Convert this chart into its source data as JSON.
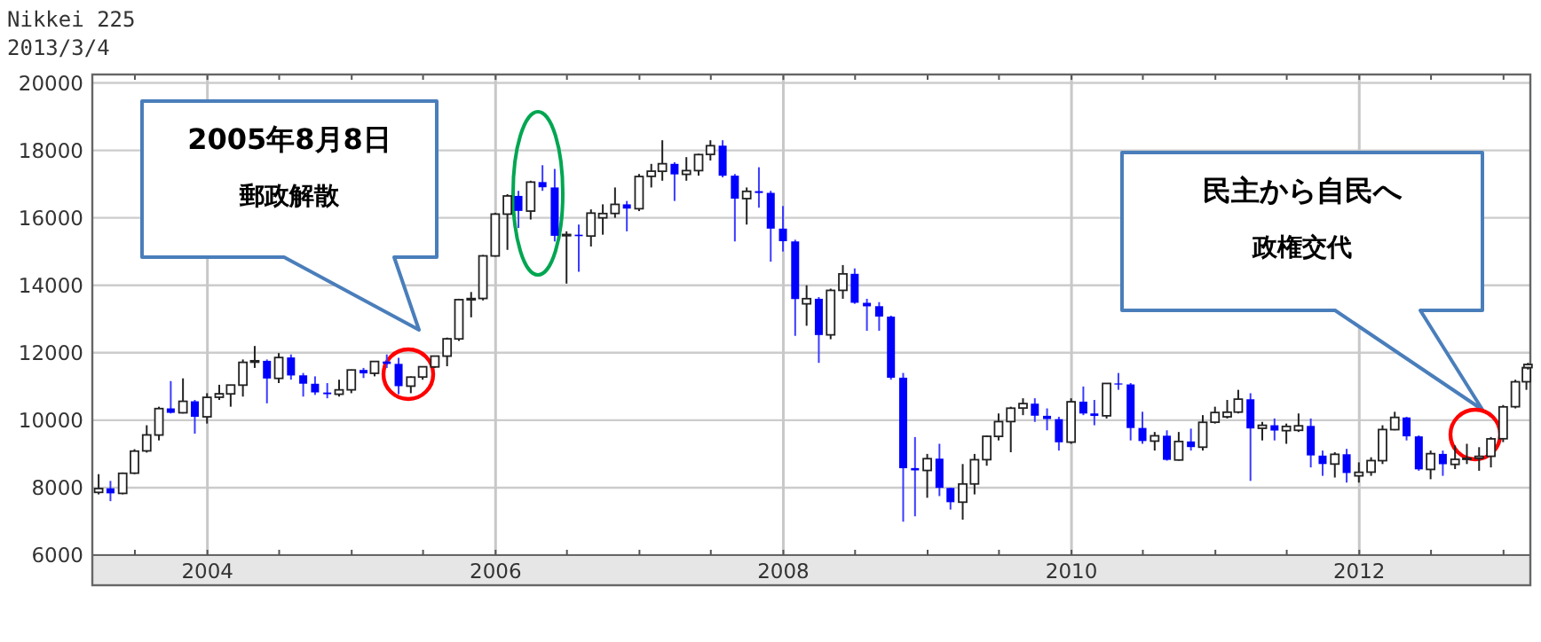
{
  "chart_data": {
    "type": "candlestick",
    "title": "Nikkei 225",
    "subtitle": "2013/3/4",
    "x": [
      "2003-03-31",
      "2003-04-30",
      "2003-05-31",
      "2003-06-30",
      "2003-07-31",
      "2003-08-31",
      "2003-09-30",
      "2003-10-31",
      "2003-11-30",
      "2003-12-31",
      "2004-01-31",
      "2004-02-29",
      "2004-03-31",
      "2004-04-30",
      "2004-05-31",
      "2004-06-30",
      "2004-07-31",
      "2004-08-31",
      "2004-09-30",
      "2004-10-31",
      "2004-11-30",
      "2004-12-31",
      "2005-01-31",
      "2005-02-28",
      "2005-03-31",
      "2005-04-30",
      "2005-05-31",
      "2005-06-30",
      "2005-07-31",
      "2005-08-31",
      "2005-09-30",
      "2005-10-31",
      "2005-11-30",
      "2005-12-31",
      "2006-01-31",
      "2006-02-28",
      "2006-03-31",
      "2006-04-30",
      "2006-05-31",
      "2006-06-30",
      "2006-07-31",
      "2006-08-31",
      "2006-09-30",
      "2006-10-31",
      "2006-11-30",
      "2006-12-31",
      "2007-01-31",
      "2007-02-28",
      "2007-03-31",
      "2007-04-30",
      "2007-05-31",
      "2007-06-30",
      "2007-07-31",
      "2007-08-31",
      "2007-09-30",
      "2007-10-31",
      "2007-11-30",
      "2007-12-31",
      "2008-01-31",
      "2008-02-29",
      "2008-03-31",
      "2008-04-30",
      "2008-05-31",
      "2008-06-30",
      "2008-07-31",
      "2008-08-31",
      "2008-09-30",
      "2008-10-31",
      "2008-11-30",
      "2008-12-31",
      "2009-01-31",
      "2009-02-28",
      "2009-03-31",
      "2009-04-30",
      "2009-05-31",
      "2009-06-30",
      "2009-07-31",
      "2009-08-31",
      "2009-09-30",
      "2009-10-31",
      "2009-11-30",
      "2009-12-31",
      "2010-01-31",
      "2010-02-28",
      "2010-03-31",
      "2010-04-30",
      "2010-05-31",
      "2010-06-30",
      "2010-07-31",
      "2010-08-31",
      "2010-09-30",
      "2010-10-31",
      "2010-11-30",
      "2010-12-31",
      "2011-01-31",
      "2011-02-28",
      "2011-03-31",
      "2011-04-30",
      "2011-05-31",
      "2011-06-30",
      "2011-07-31",
      "2011-08-31",
      "2011-09-30",
      "2011-10-31",
      "2011-11-30",
      "2011-12-31",
      "2012-01-31",
      "2012-02-29",
      "2012-03-31",
      "2012-04-30",
      "2012-05-31",
      "2012-06-30",
      "2012-07-31",
      "2012-08-31",
      "2012-09-30",
      "2012-10-31",
      "2012-11-30",
      "2012-12-31",
      "2013-01-31",
      "2013-02-28",
      "2013-03-04"
    ],
    "ohlc": [
      [
        7860,
        8400,
        7800,
        7973
      ],
      [
        7980,
        8200,
        7600,
        7831
      ],
      [
        7830,
        8450,
        7800,
        8425
      ],
      [
        8430,
        9140,
        8400,
        9083
      ],
      [
        9090,
        9850,
        9040,
        9563
      ],
      [
        9560,
        10400,
        9400,
        10344
      ],
      [
        10350,
        11160,
        10200,
        10219
      ],
      [
        10220,
        11240,
        10200,
        10560
      ],
      [
        10560,
        10600,
        9600,
        10101
      ],
      [
        10100,
        10800,
        9900,
        10677
      ],
      [
        10680,
        11050,
        10600,
        10783
      ],
      [
        10780,
        11050,
        10400,
        11042
      ],
      [
        11040,
        11800,
        10700,
        11715
      ],
      [
        11720,
        12200,
        11550,
        11762
      ],
      [
        11760,
        11800,
        10500,
        11236
      ],
      [
        11240,
        11990,
        11100,
        11858
      ],
      [
        11860,
        11950,
        11200,
        11326
      ],
      [
        11330,
        11400,
        10700,
        11082
      ],
      [
        11080,
        11300,
        10750,
        10824
      ],
      [
        10820,
        11100,
        10650,
        10771
      ],
      [
        10770,
        11200,
        10700,
        10899
      ],
      [
        10900,
        11500,
        10800,
        11489
      ],
      [
        11490,
        11550,
        11250,
        11388
      ],
      [
        11390,
        11750,
        11300,
        11741
      ],
      [
        11740,
        11950,
        11550,
        11668
      ],
      [
        11670,
        11850,
        10770,
        11009
      ],
      [
        11010,
        11300,
        10800,
        11277
      ],
      [
        11280,
        11600,
        11200,
        11584
      ],
      [
        11580,
        11900,
        11550,
        11900
      ],
      [
        11900,
        12450,
        11600,
        12413
      ],
      [
        12410,
        13600,
        12350,
        13574
      ],
      [
        13570,
        13800,
        13050,
        13606
      ],
      [
        13610,
        14900,
        13550,
        14872
      ],
      [
        14870,
        16150,
        14850,
        16111
      ],
      [
        16110,
        16700,
        15050,
        16649
      ],
      [
        16650,
        16800,
        15700,
        16205
      ],
      [
        16200,
        17100,
        15950,
        17059
      ],
      [
        17060,
        17560,
        16800,
        16906
      ],
      [
        16900,
        17450,
        15300,
        15467
      ],
      [
        15470,
        15600,
        14050,
        15505
      ],
      [
        15500,
        15800,
        14400,
        15457
      ],
      [
        15460,
        16250,
        15150,
        16140
      ],
      [
        16000,
        16400,
        15500,
        16127
      ],
      [
        16130,
        16900,
        16000,
        16399
      ],
      [
        16400,
        16500,
        15600,
        16274
      ],
      [
        16270,
        17300,
        16200,
        17225
      ],
      [
        17230,
        17600,
        16900,
        17383
      ],
      [
        17380,
        18300,
        17100,
        17604
      ],
      [
        17600,
        17650,
        16500,
        17288
      ],
      [
        17290,
        17800,
        17100,
        17400
      ],
      [
        17400,
        17900,
        17250,
        17875
      ],
      [
        17880,
        18300,
        17700,
        18138
      ],
      [
        18140,
        18300,
        17200,
        17248
      ],
      [
        17250,
        17300,
        15300,
        16569
      ],
      [
        16570,
        16900,
        15800,
        16785
      ],
      [
        16790,
        17500,
        16300,
        16737
      ],
      [
        16740,
        16800,
        14700,
        15680
      ],
      [
        15680,
        16350,
        15000,
        15307
      ],
      [
        15300,
        15350,
        12500,
        13592
      ],
      [
        13450,
        14000,
        12800,
        13603
      ],
      [
        13600,
        13650,
        11700,
        12525
      ],
      [
        12530,
        13900,
        12400,
        13849
      ],
      [
        13850,
        14600,
        13600,
        14338
      ],
      [
        14340,
        14500,
        13450,
        13481
      ],
      [
        13480,
        13600,
        12650,
        13376
      ],
      [
        13380,
        13500,
        12650,
        13072
      ],
      [
        13070,
        13100,
        11200,
        11259
      ],
      [
        11260,
        11400,
        6990,
        8576
      ],
      [
        8580,
        9500,
        7150,
        8512
      ],
      [
        8510,
        9000,
        7700,
        8859
      ],
      [
        8860,
        9300,
        7750,
        7994
      ],
      [
        7990,
        8000,
        7350,
        7568
      ],
      [
        7570,
        8700,
        7050,
        8109
      ],
      [
        8110,
        9000,
        7800,
        8828
      ],
      [
        8830,
        9550,
        8650,
        9522
      ],
      [
        9520,
        10200,
        9400,
        9958
      ],
      [
        9960,
        10400,
        9050,
        10356
      ],
      [
        10360,
        10650,
        10150,
        10492
      ],
      [
        10490,
        10650,
        9950,
        10133
      ],
      [
        10130,
        10350,
        9700,
        10034
      ],
      [
        10030,
        10100,
        9100,
        9345
      ],
      [
        9350,
        10650,
        9300,
        10546
      ],
      [
        10550,
        11000,
        10150,
        10198
      ],
      [
        10200,
        10600,
        9850,
        10126
      ],
      [
        10130,
        11100,
        10050,
        11089
      ],
      [
        11090,
        11400,
        10900,
        11057
      ],
      [
        11060,
        11100,
        9400,
        9768
      ],
      [
        9770,
        10250,
        9300,
        9382
      ],
      [
        9380,
        9650,
        9100,
        9537
      ],
      [
        9540,
        9700,
        8800,
        8824
      ],
      [
        8820,
        9650,
        8800,
        9369
      ],
      [
        9370,
        9750,
        9100,
        9202
      ],
      [
        9200,
        10150,
        9100,
        9937
      ],
      [
        9940,
        10400,
        9900,
        10228
      ],
      [
        10100,
        10600,
        10050,
        10237
      ],
      [
        10240,
        10900,
        10200,
        10624
      ],
      [
        10620,
        10800,
        8200,
        9755
      ],
      [
        9760,
        9950,
        9400,
        9849
      ],
      [
        9850,
        10050,
        9400,
        9693
      ],
      [
        9690,
        9900,
        9300,
        9816
      ],
      [
        9700,
        10200,
        9650,
        9833
      ],
      [
        9830,
        10050,
        8600,
        8955
      ],
      [
        8950,
        9100,
        8350,
        8700
      ],
      [
        8700,
        9050,
        8300,
        8988
      ],
      [
        8990,
        9150,
        8150,
        8434
      ],
      [
        8350,
        8750,
        8150,
        8455
      ],
      [
        8460,
        8900,
        8350,
        8802
      ],
      [
        8800,
        9850,
        8700,
        9723
      ],
      [
        9720,
        10250,
        9700,
        10083
      ],
      [
        10080,
        10100,
        9400,
        9521
      ],
      [
        9520,
        9550,
        8500,
        8542
      ],
      [
        8540,
        9100,
        8250,
        9007
      ],
      [
        9000,
        9100,
        8350,
        8695
      ],
      [
        8690,
        9250,
        8550,
        8840
      ],
      [
        8840,
        9300,
        8700,
        8870
      ],
      [
        8870,
        9200,
        8500,
        8928
      ],
      [
        8930,
        9500,
        8600,
        9446
      ],
      [
        9450,
        10450,
        9350,
        10395
      ],
      [
        10400,
        11200,
        10350,
        11138
      ],
      [
        11140,
        11600,
        10900,
        11559
      ],
      [
        11560,
        11700,
        11500,
        11652
      ]
    ],
    "xlim": [
      "2003-03-15",
      "2013-03-10"
    ],
    "xticks": [
      {
        "value": "2003-07-01",
        "label": null
      },
      {
        "value": "2004-01-01",
        "label": "2004"
      },
      {
        "value": "2004-07-01",
        "label": null
      },
      {
        "value": "2005-01-01",
        "label": null
      },
      {
        "value": "2005-07-01",
        "label": null
      },
      {
        "value": "2006-01-01",
        "label": "2006"
      },
      {
        "value": "2006-07-01",
        "label": null
      },
      {
        "value": "2007-01-01",
        "label": null
      },
      {
        "value": "2007-07-01",
        "label": null
      },
      {
        "value": "2008-01-01",
        "label": "2008"
      },
      {
        "value": "2008-07-01",
        "label": null
      },
      {
        "value": "2009-01-01",
        "label": null
      },
      {
        "value": "2009-07-01",
        "label": null
      },
      {
        "value": "2010-01-01",
        "label": "2010"
      },
      {
        "value": "2010-07-01",
        "label": null
      },
      {
        "value": "2011-01-01",
        "label": null
      },
      {
        "value": "2011-07-01",
        "label": null
      },
      {
        "value": "2012-01-01",
        "label": "2012"
      },
      {
        "value": "2012-07-01",
        "label": null
      },
      {
        "value": "2013-01-01",
        "label": null
      }
    ],
    "ylim": [
      6000,
      20250
    ],
    "yticks": [
      6000,
      8000,
      10000,
      12000,
      14000,
      16000,
      18000,
      20000
    ],
    "grid": true,
    "annotations": [
      "2005年8月8日",
      "郵政解散",
      "民主から自民へ",
      "政権交代"
    ]
  }
}
